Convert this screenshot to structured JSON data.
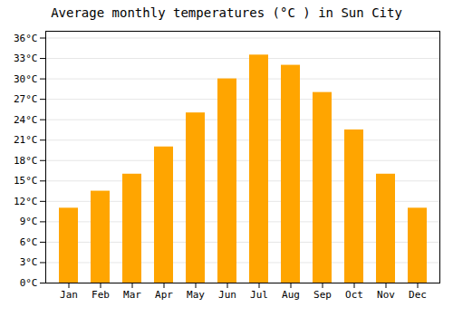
{
  "chart_data": {
    "type": "bar",
    "title": "Average monthly temperatures (°C ) in Sun City",
    "categories": [
      "Jan",
      "Feb",
      "Mar",
      "Apr",
      "May",
      "Jun",
      "Jul",
      "Aug",
      "Sep",
      "Oct",
      "Nov",
      "Dec"
    ],
    "values": [
      11,
      13.5,
      16,
      20,
      25,
      30,
      33.5,
      32,
      28,
      22.5,
      16,
      11
    ],
    "color": "#FFA500",
    "ylim": [
      0,
      37
    ],
    "yticks": [
      {
        "value": 0,
        "label": "0°C"
      },
      {
        "value": 3,
        "label": "3°C"
      },
      {
        "value": 6,
        "label": "6°C"
      },
      {
        "value": 9,
        "label": "9°C"
      },
      {
        "value": 12,
        "label": "12°C"
      },
      {
        "value": 15,
        "label": "15°C"
      },
      {
        "value": 18,
        "label": "18°C"
      },
      {
        "value": 21,
        "label": "21°C"
      },
      {
        "value": 24,
        "label": "24°C"
      },
      {
        "value": 27,
        "label": "27°C"
      },
      {
        "value": 30,
        "label": "30°C"
      },
      {
        "value": 33,
        "label": "33°C"
      },
      {
        "value": 36,
        "label": "36°C"
      }
    ],
    "grid": true
  }
}
